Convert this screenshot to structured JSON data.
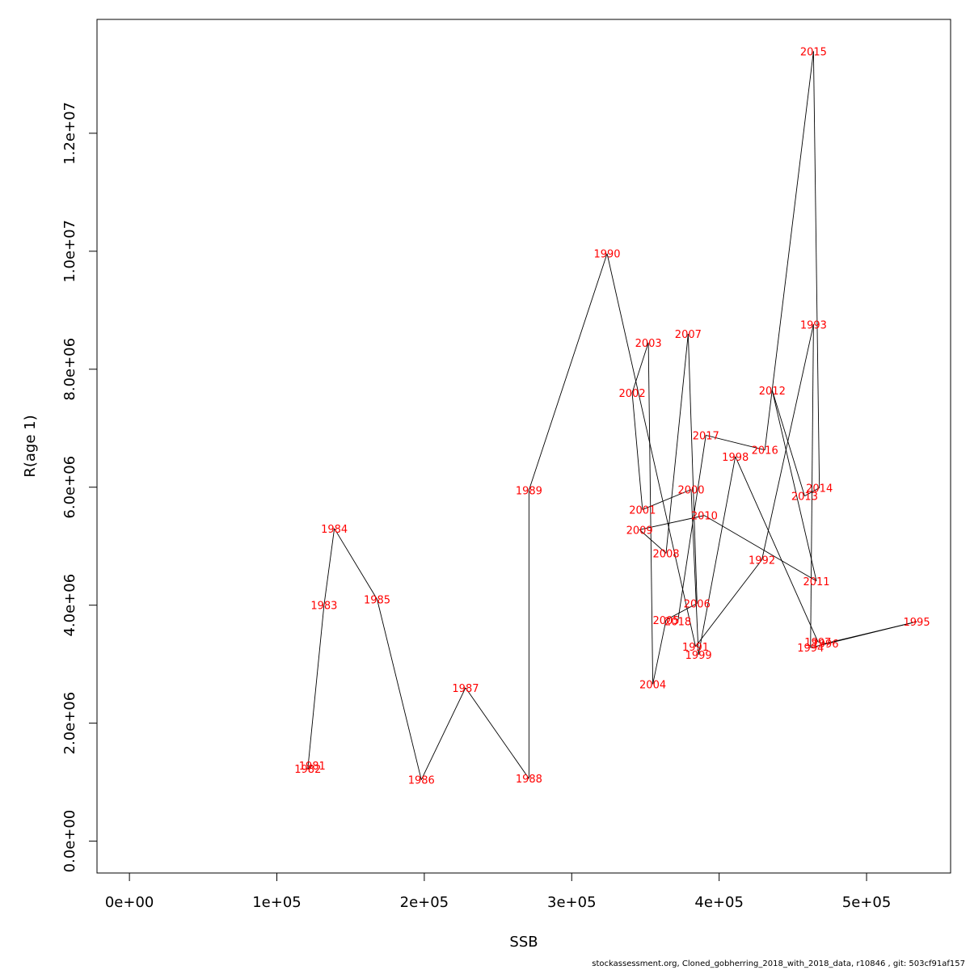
{
  "chart_data": {
    "type": "line",
    "xlabel": "SSB",
    "ylabel": "R(age 1)",
    "xlim": [
      -22000,
      557000
    ],
    "ylim": [
      -540000,
      13930000
    ],
    "x_ticks": [
      {
        "value": 0,
        "label": "0e+00"
      },
      {
        "value": 100000,
        "label": "1e+05"
      },
      {
        "value": 200000,
        "label": "2e+05"
      },
      {
        "value": 300000,
        "label": "3e+05"
      },
      {
        "value": 400000,
        "label": "4e+05"
      },
      {
        "value": 500000,
        "label": "5e+05"
      }
    ],
    "y_ticks": [
      {
        "value": 0,
        "label": "0.0e+00"
      },
      {
        "value": 2000000,
        "label": "2.0e+06"
      },
      {
        "value": 4000000,
        "label": "4.0e+06"
      },
      {
        "value": 6000000,
        "label": "6.0e+06"
      },
      {
        "value": 8000000,
        "label": "8.0e+06"
      },
      {
        "value": 10000000,
        "label": "1.0e+07"
      },
      {
        "value": 12000000,
        "label": "1.2e+07"
      }
    ],
    "points": [
      {
        "label": "1981",
        "x": 124000,
        "y": 1280000
      },
      {
        "label": "1982",
        "x": 121000,
        "y": 1230000
      },
      {
        "label": "1983",
        "x": 132000,
        "y": 4000000
      },
      {
        "label": "1984",
        "x": 139000,
        "y": 5300000
      },
      {
        "label": "1985",
        "x": 168000,
        "y": 4100000
      },
      {
        "label": "1986",
        "x": 198000,
        "y": 1040000
      },
      {
        "label": "1987",
        "x": 228000,
        "y": 2600000
      },
      {
        "label": "1988",
        "x": 271000,
        "y": 1060000
      },
      {
        "label": "1989",
        "x": 271000,
        "y": 5950000
      },
      {
        "label": "1990",
        "x": 324000,
        "y": 9960000
      },
      {
        "label": "1991",
        "x": 384000,
        "y": 3300000
      },
      {
        "label": "1992",
        "x": 429000,
        "y": 4770000
      },
      {
        "label": "1993",
        "x": 464000,
        "y": 8760000
      },
      {
        "label": "1994",
        "x": 462000,
        "y": 3280000
      },
      {
        "label": "1995",
        "x": 534000,
        "y": 3720000
      },
      {
        "label": "1996",
        "x": 472000,
        "y": 3350000
      },
      {
        "label": "1997",
        "x": 467000,
        "y": 3380000
      },
      {
        "label": "1998",
        "x": 411000,
        "y": 6520000
      },
      {
        "label": "1999",
        "x": 386000,
        "y": 3160000
      },
      {
        "label": "2000",
        "x": 381000,
        "y": 5960000
      },
      {
        "label": "2001",
        "x": 348000,
        "y": 5620000
      },
      {
        "label": "2002",
        "x": 341000,
        "y": 7600000
      },
      {
        "label": "2003",
        "x": 352000,
        "y": 8450000
      },
      {
        "label": "2004",
        "x": 355000,
        "y": 2660000
      },
      {
        "label": "2005",
        "x": 364000,
        "y": 3750000
      },
      {
        "label": "2006",
        "x": 385000,
        "y": 4030000
      },
      {
        "label": "2007",
        "x": 379000,
        "y": 8600000
      },
      {
        "label": "2008",
        "x": 364000,
        "y": 4880000
      },
      {
        "label": "2009",
        "x": 346000,
        "y": 5280000
      },
      {
        "label": "2010",
        "x": 390000,
        "y": 5520000
      },
      {
        "label": "2011",
        "x": 466000,
        "y": 4410000
      },
      {
        "label": "2012",
        "x": 436000,
        "y": 7640000
      },
      {
        "label": "2013",
        "x": 458000,
        "y": 5850000
      },
      {
        "label": "2014",
        "x": 468000,
        "y": 5990000
      },
      {
        "label": "2015",
        "x": 464000,
        "y": 13390000
      },
      {
        "label": "2016",
        "x": 431000,
        "y": 6630000
      },
      {
        "label": "2017",
        "x": 391000,
        "y": 6880000
      },
      {
        "label": "2018",
        "x": 372000,
        "y": 3730000
      }
    ]
  },
  "footer": "stockassessment.org, Cloned_gobherring_2018_with_2018_data, r10846 , git: 503cf91af157"
}
